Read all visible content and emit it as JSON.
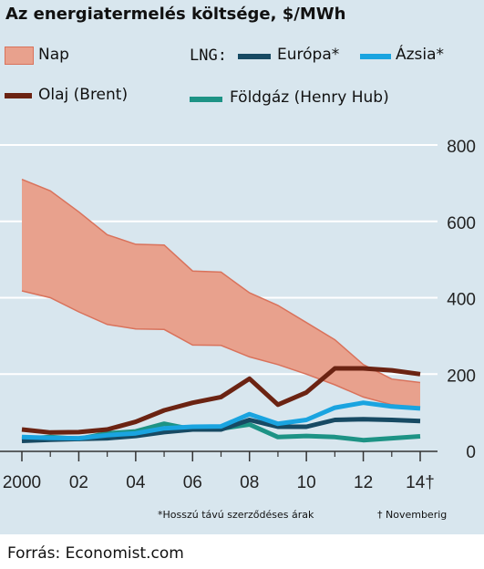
{
  "title": "Az energiatermelés költsége, $/MWh",
  "legend": {
    "nap": "Nap",
    "lng_prefix": "LNG:",
    "europa": "Európa*",
    "azsia": "Ázsia*",
    "olaj": "Olaj (Brent)",
    "foldgaz": "Földgáz (Henry Hub)"
  },
  "colors": {
    "background": "#d8e6ee",
    "nap_fill": "#e8a18d",
    "nap_edge": "#d9725b",
    "olaj": "#6b2312",
    "europa": "#174a63",
    "azsia": "#1aa4e0",
    "foldgaz": "#1d9385",
    "grid": "#ffffff"
  },
  "chart_data": {
    "type": "line",
    "x": [
      2000,
      2001,
      2002,
      2003,
      2004,
      2005,
      2006,
      2007,
      2008,
      2009,
      2010,
      2011,
      2012,
      2013,
      2014
    ],
    "ylim": [
      0,
      800
    ],
    "yticks": [
      "0",
      "200",
      "400",
      "600",
      "800"
    ],
    "xticks": [
      "2000",
      "02",
      "04",
      "06",
      "08",
      "10",
      "12",
      "14†"
    ],
    "band": {
      "name": "Nap",
      "upper": [
        710,
        680,
        625,
        565,
        540,
        538,
        470,
        467,
        413,
        380,
        335,
        290,
        225,
        187,
        178
      ],
      "lower": [
        418,
        400,
        363,
        330,
        318,
        317,
        276,
        275,
        245,
        225,
        200,
        172,
        140,
        120,
        110
      ]
    },
    "series": [
      {
        "name": "Olaj (Brent)",
        "values": [
          55,
          47,
          48,
          55,
          75,
          105,
          125,
          140,
          188,
          120,
          152,
          215,
          215,
          210,
          200
        ]
      },
      {
        "name": "Ázsia*",
        "values": [
          35,
          33,
          32,
          40,
          45,
          58,
          62,
          63,
          95,
          70,
          80,
          112,
          125,
          115,
          110
        ]
      },
      {
        "name": "Európa*",
        "values": [
          25,
          28,
          30,
          32,
          38,
          48,
          55,
          55,
          80,
          62,
          62,
          80,
          82,
          80,
          77
        ]
      },
      {
        "name": "Földgáz (Henry Hub)",
        "values": [
          30,
          35,
          30,
          45,
          50,
          70,
          55,
          57,
          68,
          35,
          38,
          35,
          27,
          32,
          37
        ]
      }
    ]
  },
  "footnote_left": "*Hosszú távú szerződéses árak",
  "footnote_right": "† Novemberig",
  "source": "Forrás: Economist.com"
}
